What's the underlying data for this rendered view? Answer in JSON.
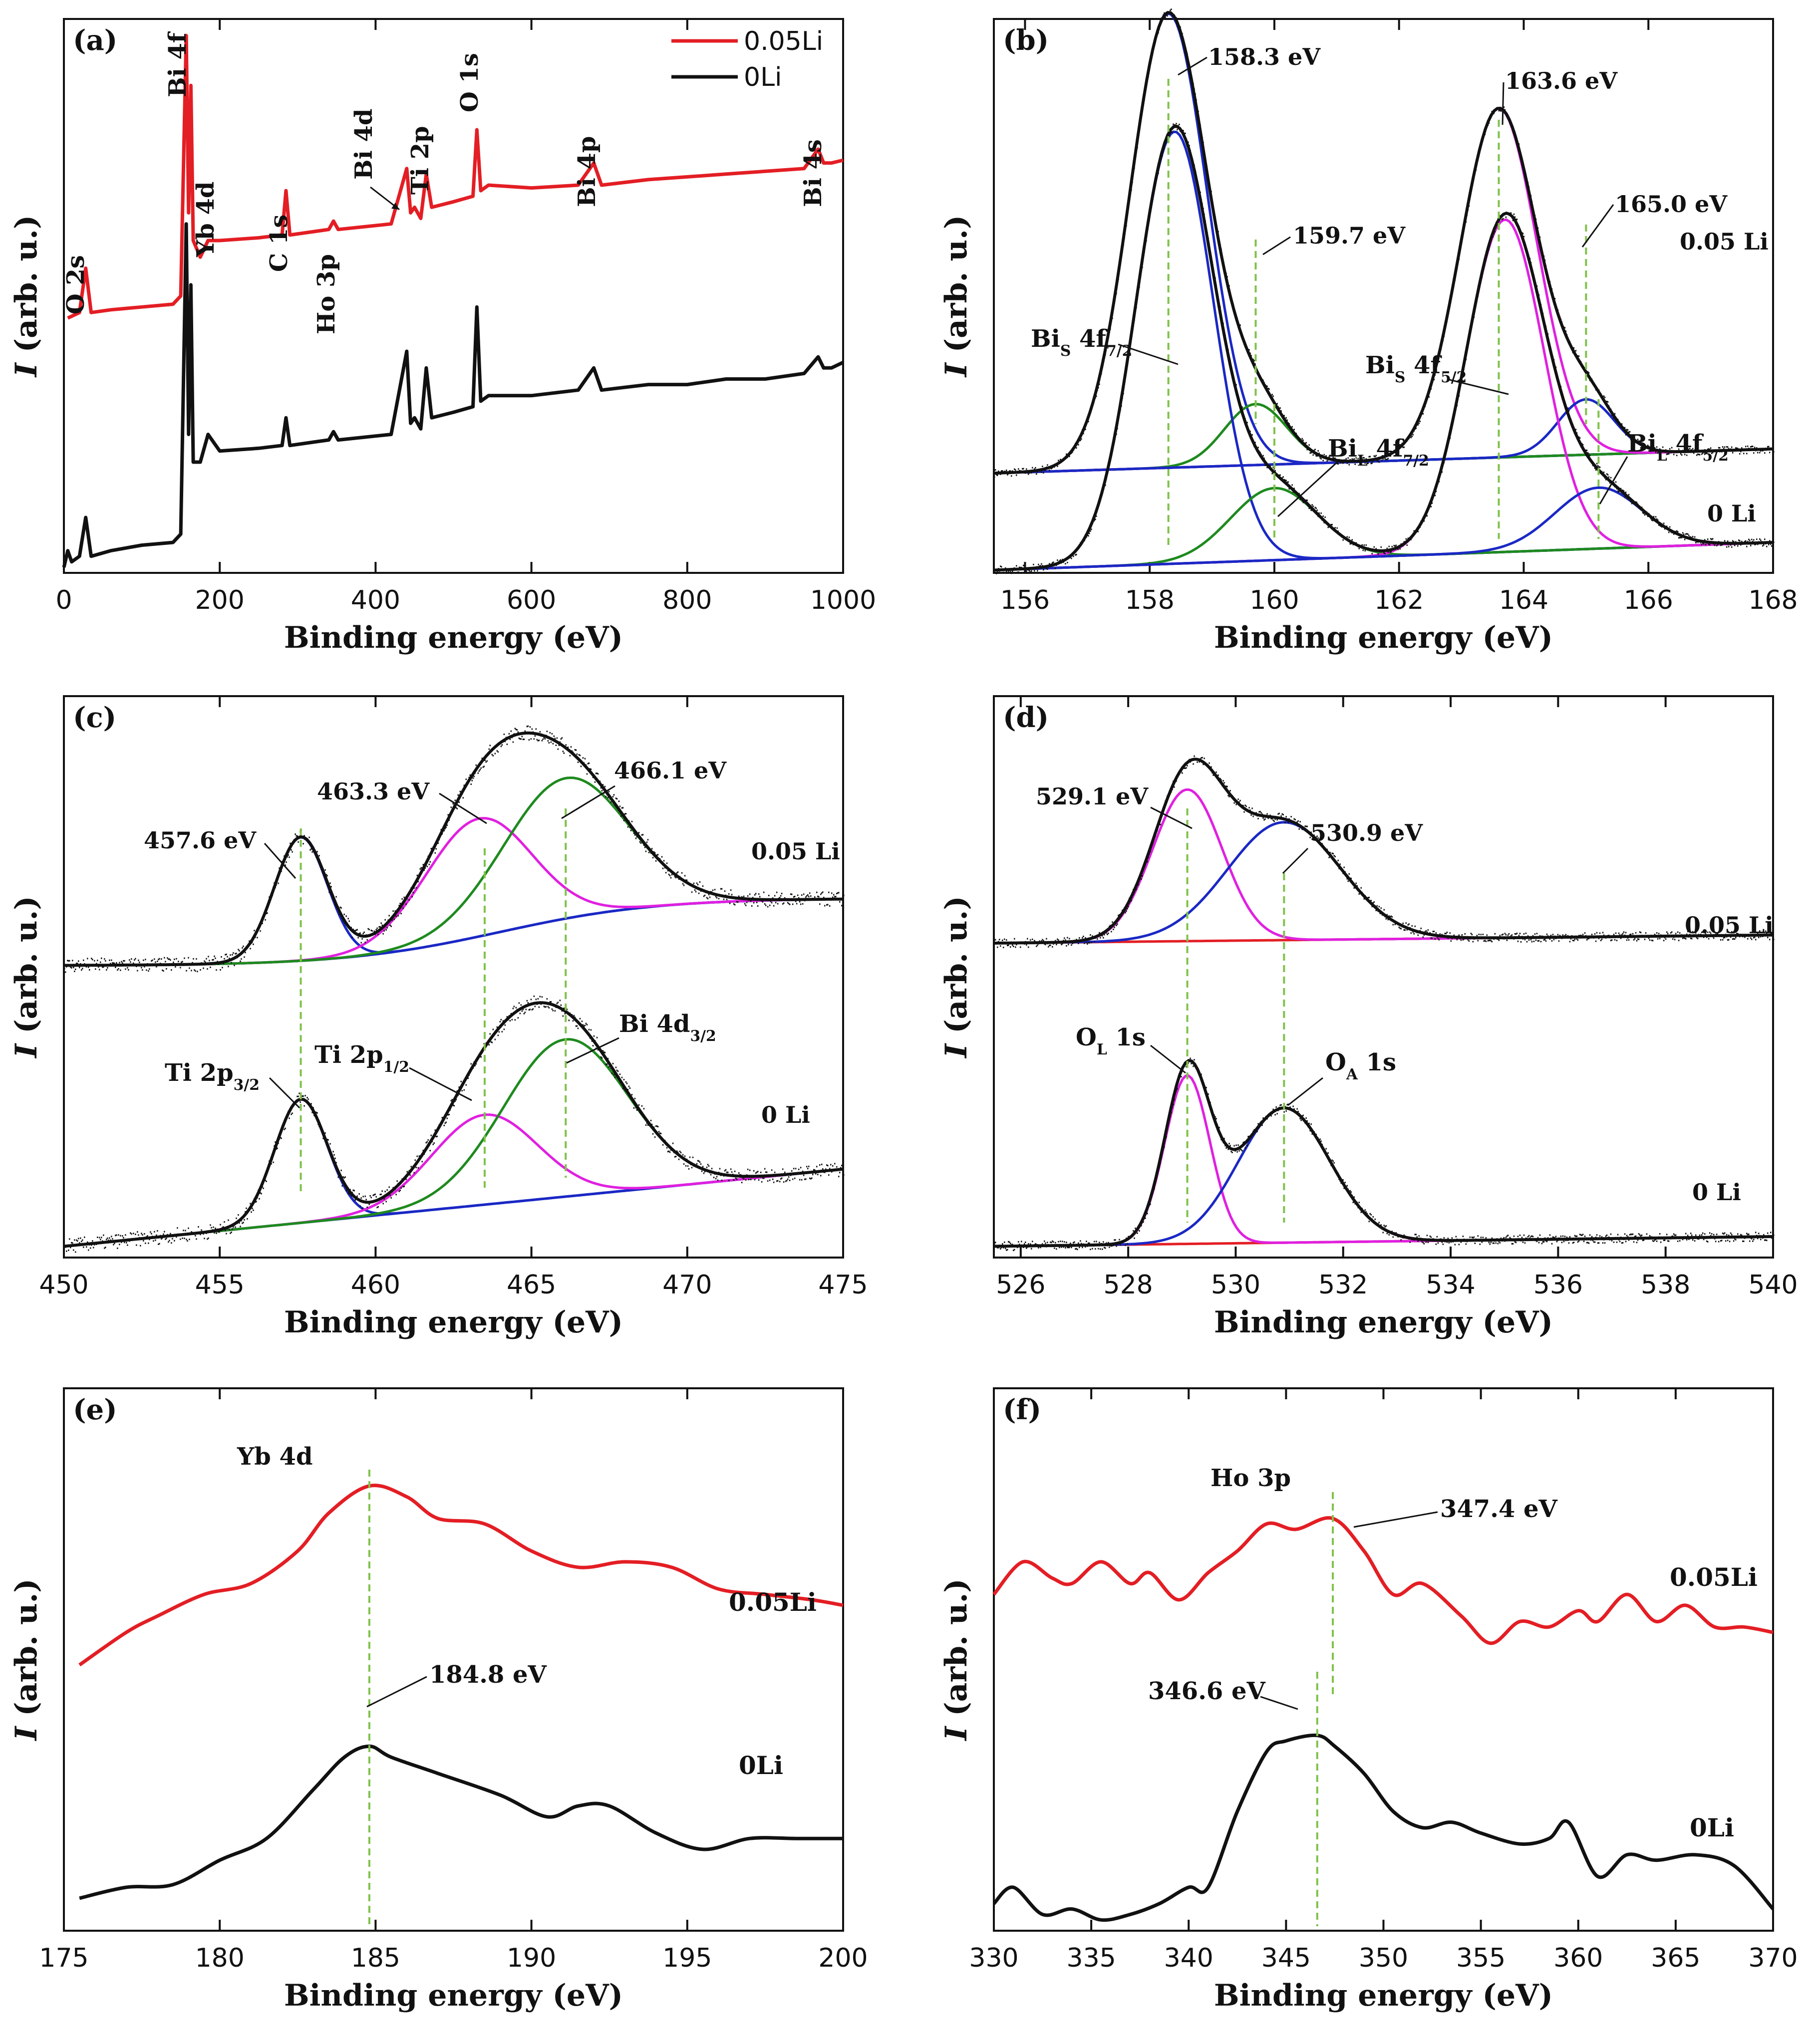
{
  "chart_data": [
    {
      "id": "a",
      "type": "line",
      "panel_label": "(a)",
      "xlabel": "Binding energy (eV)",
      "ylabel": "I (arb. u.)",
      "ylabel_italic": "I",
      "ylabel_rest": " (arb. u.)",
      "xlim": [
        0,
        1000
      ],
      "xticks": [
        0,
        200,
        400,
        600,
        800,
        1000
      ],
      "ylim": [
        0,
        100
      ],
      "show_yticks": false,
      "legend": {
        "position": "top-center",
        "entries": [
          {
            "name": "0.05Li",
            "color": "#e31e24"
          },
          {
            "name": "0Li",
            "color": "#111111"
          }
        ]
      },
      "series": [
        {
          "name": "0.05Li",
          "color": "#e31e24",
          "x": [
            5,
            20,
            28,
            35,
            60,
            100,
            140,
            150,
            157,
            160,
            163,
            166,
            175,
            185,
            200,
            250,
            280,
            285,
            290,
            340,
            346,
            352,
            420,
            440,
            445,
            450,
            458,
            465,
            472,
            500,
            525,
            530,
            535,
            545,
            600,
            660,
            680,
            690,
            750,
            800,
            850,
            900,
            950,
            968,
            975,
            985,
            1000
          ],
          "y": [
            46,
            47,
            55,
            47,
            47.5,
            48,
            48.5,
            50,
            97,
            65,
            88,
            60,
            57,
            60,
            60,
            60.5,
            61,
            69,
            61,
            62,
            63.5,
            62,
            63,
            73,
            65,
            66,
            64,
            72,
            66,
            67,
            68,
            80,
            69,
            70,
            69.5,
            70,
            74,
            70,
            71,
            71.5,
            72,
            72.5,
            73,
            76.5,
            74,
            74,
            74.5
          ]
        },
        {
          "name": "0Li",
          "color": "#111111",
          "x": [
            0,
            5,
            10,
            20,
            28,
            35,
            60,
            100,
            140,
            150,
            157,
            160,
            163,
            166,
            175,
            185,
            200,
            250,
            280,
            285,
            290,
            340,
            346,
            352,
            420,
            440,
            445,
            450,
            458,
            465,
            472,
            500,
            525,
            530,
            535,
            545,
            600,
            660,
            680,
            690,
            750,
            800,
            850,
            900,
            950,
            968,
            975,
            985,
            1000
          ],
          "y": [
            1,
            4,
            2,
            3,
            10,
            3,
            4,
            5,
            5.5,
            7,
            63,
            25,
            52,
            20,
            20,
            25,
            22,
            22.5,
            23,
            28,
            23,
            24,
            25.5,
            24,
            25,
            40,
            27,
            28,
            26,
            37,
            28,
            29,
            30,
            48,
            31,
            32,
            32,
            33,
            37,
            33,
            34,
            34,
            35,
            35,
            36,
            39,
            37,
            37,
            38
          ]
        }
      ],
      "annotations": [
        "O 2s",
        "Bi 4f",
        "Yb 4d",
        "C 1s",
        "Ho 3p",
        "Bi 4d",
        "Ti 2p",
        "O 1s",
        "Bi 4p",
        "Bi 4s"
      ]
    },
    {
      "id": "b",
      "type": "line",
      "panel_label": "(b)",
      "xlabel": "Binding energy (eV)",
      "ylabel": "I (arb. u.)",
      "ylabel_italic": "I",
      "ylabel_rest": " (arb. u.)",
      "xlim": [
        155.5,
        168
      ],
      "xticks": [
        156,
        158,
        160,
        162,
        164,
        166,
        168
      ],
      "ylim": [
        0,
        100
      ],
      "show_yticks": false,
      "sample_labels": [
        {
          "text": "0.05 Li",
          "color": "#e31e24"
        },
        {
          "text": "0 Li",
          "color": "#e31e24"
        }
      ],
      "peaks": [
        {
          "sample": "0.05Li",
          "center": 158.3,
          "height": 82,
          "width": 0.62,
          "color": "#1a28c4"
        },
        {
          "sample": "0.05Li",
          "center": 159.7,
          "height": 11,
          "width": 0.5,
          "color": "#1e8a1e"
        },
        {
          "sample": "0.05Li",
          "center": 163.6,
          "height": 63,
          "width": 0.62,
          "color": "#e020e0"
        },
        {
          "sample": "0.05Li",
          "center": 165.0,
          "height": 10,
          "width": 0.45,
          "color": "#1a28c4"
        },
        {
          "sample": "0Li",
          "center": 158.4,
          "height": 78,
          "width": 0.62,
          "color": "#1a28c4"
        },
        {
          "sample": "0Li",
          "center": 160.0,
          "height": 13,
          "width": 0.7,
          "color": "#1e8a1e"
        },
        {
          "sample": "0Li",
          "center": 163.7,
          "height": 60,
          "width": 0.62,
          "color": "#e020e0"
        },
        {
          "sample": "0Li",
          "center": 165.2,
          "height": 11,
          "width": 0.7,
          "color": "#1a28c4"
        }
      ],
      "dashed_guides": [
        158.3,
        159.7,
        160.0,
        163.6,
        165.0,
        165.2
      ],
      "annotations": [
        "158.3 eV",
        "159.7 eV",
        "163.6 eV",
        "165.0 eV"
      ],
      "sub_labels": [
        {
          "main": "Bi",
          "sub": "S",
          "rest": " 4f",
          "sub2": "7/2"
        },
        {
          "main": "Bi",
          "sub": "S",
          "rest": " 4f",
          "sub2": "5/2"
        },
        {
          "main": "Bi",
          "sub": "L",
          "rest": " 4f",
          "sub2": "7/2"
        },
        {
          "main": "Bi",
          "sub": "L",
          "rest": " 4f",
          "sub2": "5/2"
        }
      ]
    },
    {
      "id": "c",
      "type": "line",
      "panel_label": "(c)",
      "xlabel": "Binding energy (eV)",
      "ylabel": "I (arb. u.)",
      "ylabel_italic": "I",
      "ylabel_rest": " (arb. u.)",
      "xlim": [
        450,
        475
      ],
      "xticks": [
        450,
        455,
        460,
        465,
        470,
        475
      ],
      "ylim": [
        0,
        100
      ],
      "show_yticks": false,
      "sample_labels": [
        {
          "text": "0.05 Li",
          "color": "#e31e24"
        },
        {
          "text": "0 Li",
          "color": "#e31e24"
        }
      ],
      "peaks": [
        {
          "sample": "0.05Li",
          "center": 457.6,
          "height": 22,
          "width": 0.85,
          "color": "#1a28c4"
        },
        {
          "sample": "0.05Li",
          "center": 463.3,
          "height": 21,
          "width": 1.7,
          "color": "#e020e0"
        },
        {
          "sample": "0.05Li",
          "center": 466.1,
          "height": 25,
          "width": 2.0,
          "color": "#1e8a1e"
        },
        {
          "sample": "0Li",
          "center": 457.6,
          "height": 22,
          "width": 0.85,
          "color": "#1a28c4"
        },
        {
          "sample": "0Li",
          "center": 463.5,
          "height": 16,
          "width": 1.7,
          "color": "#e020e0"
        },
        {
          "sample": "0Li",
          "center": 466.1,
          "height": 28,
          "width": 2.0,
          "color": "#1e8a1e"
        }
      ],
      "dashed_guides": [
        457.6,
        463.5,
        466.1
      ],
      "annotations": [
        "457.6 eV",
        "463.3 eV",
        "466.1 eV"
      ],
      "sub_labels": [
        {
          "main": "Ti 2p",
          "sub": "3/2"
        },
        {
          "main": "Ti 2p",
          "sub": "1/2"
        },
        {
          "main": "Bi 4d",
          "sub": "3/2"
        }
      ]
    },
    {
      "id": "d",
      "type": "line",
      "panel_label": "(d)",
      "xlabel": "Binding energy (eV)",
      "ylabel": "I (arb. u.)",
      "ylabel_italic": "I",
      "ylabel_rest": " (arb. u.)",
      "xlim": [
        525.5,
        540
      ],
      "xticks": [
        526,
        528,
        530,
        532,
        534,
        536,
        538,
        540
      ],
      "ylim": [
        0,
        100
      ],
      "show_yticks": false,
      "sample_labels": [
        {
          "text": "0.05 Li",
          "color": "#e31e24"
        },
        {
          "text": "0 Li",
          "color": "#e31e24"
        }
      ],
      "peaks": [
        {
          "sample": "0.05Li",
          "center": 529.1,
          "height": 27,
          "width": 0.65,
          "color": "#e020e0"
        },
        {
          "sample": "0.05Li",
          "center": 530.9,
          "height": 21,
          "width": 1.05,
          "color": "#1a28c4"
        },
        {
          "sample": "0Li",
          "center": 529.1,
          "height": 30,
          "width": 0.42,
          "color": "#e020e0"
        },
        {
          "sample": "0Li",
          "center": 530.9,
          "height": 24,
          "width": 0.85,
          "color": "#1a28c4"
        }
      ],
      "dashed_guides": [
        529.1,
        530.9
      ],
      "annotations": [
        "529.1 eV",
        "530.9 eV"
      ],
      "sub_labels": [
        {
          "main": "O",
          "sub": "L",
          "rest": " 1s"
        },
        {
          "main": "O",
          "sub": "A",
          "rest": " 1s"
        }
      ]
    },
    {
      "id": "e",
      "type": "line",
      "panel_label": "(e)",
      "xlabel": "Binding energy (eV)",
      "ylabel": "I (arb. u.)",
      "ylabel_italic": "I",
      "ylabel_rest": " (arb. u.)",
      "xlim": [
        175,
        200
      ],
      "xticks": [
        175,
        180,
        185,
        190,
        195,
        200
      ],
      "ylim": [
        0,
        100
      ],
      "show_yticks": false,
      "sample_labels": [
        {
          "text": "0.05Li",
          "color": "#e31e24"
        },
        {
          "text": "0Li",
          "color": "#e31e24"
        }
      ],
      "series": [
        {
          "name": "0.05Li",
          "color": "#e31e24",
          "x": [
            175.5,
            177,
            178,
            179.5,
            181,
            182.5,
            183.5,
            184.8,
            186,
            187,
            188.5,
            190,
            191.5,
            193,
            194.5,
            196,
            197.5,
            199,
            200
          ],
          "y": [
            49,
            55,
            58,
            62,
            64,
            70,
            77,
            82,
            80,
            76,
            75,
            70,
            67,
            68,
            67,
            63,
            62,
            61,
            60
          ]
        },
        {
          "name": "0Li",
          "color": "#111111",
          "x": [
            175.5,
            177,
            178.5,
            180,
            181.5,
            183,
            184,
            184.8,
            185.5,
            187,
            189,
            190.5,
            191.5,
            192.5,
            194,
            195.5,
            197,
            198.5,
            200
          ],
          "y": [
            6,
            8,
            8.5,
            13,
            17,
            26,
            32,
            34,
            32,
            29,
            25,
            21,
            23,
            23,
            18,
            15,
            17,
            17,
            17
          ]
        }
      ],
      "dashed_guides": [
        184.8
      ],
      "annotations": [
        "Yb  4d",
        "184.8 eV"
      ]
    },
    {
      "id": "f",
      "type": "line",
      "panel_label": "(f)",
      "xlabel": "Binding energy (eV)",
      "ylabel": "I (arb. u.)",
      "ylabel_italic": "I",
      "ylabel_rest": " (arb. u.)",
      "xlim": [
        330,
        370
      ],
      "xticks": [
        330,
        335,
        340,
        345,
        350,
        355,
        360,
        365,
        370
      ],
      "ylim": [
        0,
        100
      ],
      "show_yticks": false,
      "sample_labels": [
        {
          "text": "0.05Li",
          "color": "#e31e24"
        },
        {
          "text": "0Li",
          "color": "#e31e24"
        }
      ],
      "series": [
        {
          "name": "0.05Li",
          "color": "#e31e24",
          "x": [
            330,
            331.5,
            333,
            334,
            335.5,
            337,
            338,
            339.5,
            341,
            342.5,
            344,
            345.5,
            347.4,
            349,
            350.5,
            352,
            354,
            355.5,
            357,
            358.5,
            360,
            361,
            362.5,
            364,
            365.5,
            367,
            368.5,
            370
          ],
          "y": [
            62,
            68,
            65,
            64,
            68,
            64,
            66,
            61,
            66,
            70,
            75,
            74,
            76,
            70,
            62,
            64,
            58,
            53,
            57,
            56,
            59,
            57,
            62,
            57,
            60,
            56,
            56,
            55
          ]
        },
        {
          "name": "0Li",
          "color": "#111111",
          "x": [
            330,
            331,
            332.5,
            334,
            335.5,
            337,
            338.5,
            340,
            341,
            342.5,
            344,
            345,
            346.6,
            347.5,
            349,
            350.5,
            352,
            353.5,
            355,
            357,
            358.5,
            359.5,
            361,
            362.5,
            364,
            366,
            368,
            370
          ],
          "y": [
            5,
            8,
            3,
            4,
            2,
            3,
            5,
            8,
            8,
            22,
            33,
            35,
            36,
            34,
            29,
            22,
            19,
            20,
            18,
            16,
            17,
            20,
            10,
            14,
            13,
            14,
            12,
            4
          ]
        }
      ],
      "dashed_guides": [
        346.6,
        347.4
      ],
      "annotations": [
        "Ho 3p",
        "347.4 eV",
        "346.6 eV"
      ]
    }
  ]
}
